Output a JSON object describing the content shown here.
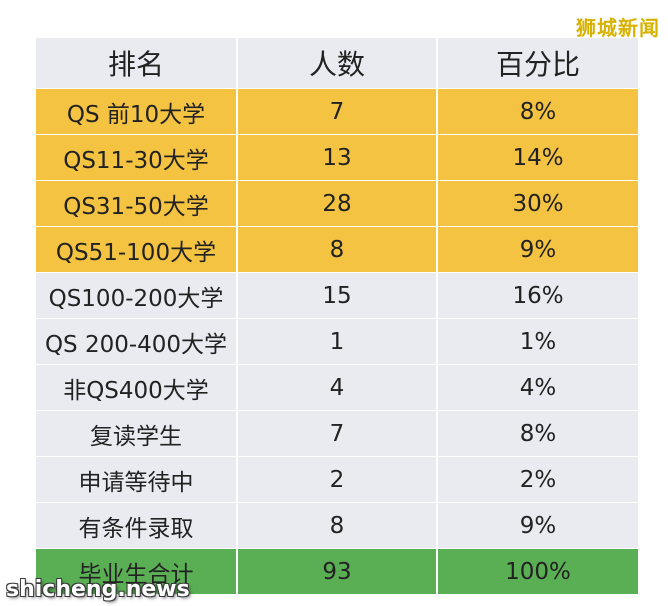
{
  "watermark_top": "狮城新闻",
  "watermark_bottom": "shicheng.news",
  "colors": {
    "gold": "#f4c342",
    "plain": "#eaebf1",
    "total": "#5aaf54"
  },
  "table": {
    "headers": [
      "排名",
      "人数",
      "百分比"
    ],
    "rows": [
      {
        "rank": "QS 前10大学",
        "count": "7",
        "percent": "8%",
        "style": "gold"
      },
      {
        "rank": "QS11-30大学",
        "count": "13",
        "percent": "14%",
        "style": "gold"
      },
      {
        "rank": "QS31-50大学",
        "count": "28",
        "percent": "30%",
        "style": "gold"
      },
      {
        "rank": "QS51-100大学",
        "count": "8",
        "percent": "9%",
        "style": "gold"
      },
      {
        "rank": "QS100-200大学",
        "count": "15",
        "percent": "16%",
        "style": "plain"
      },
      {
        "rank": "QS 200-400大学",
        "count": "1",
        "percent": "1%",
        "style": "plain"
      },
      {
        "rank": "非QS400大学",
        "count": "4",
        "percent": "4%",
        "style": "plain"
      },
      {
        "rank": "复读学生",
        "count": "7",
        "percent": "8%",
        "style": "plain"
      },
      {
        "rank": "申请等待中",
        "count": "2",
        "percent": "2%",
        "style": "plain"
      },
      {
        "rank": "有条件录取",
        "count": "8",
        "percent": "9%",
        "style": "plain"
      },
      {
        "rank": "毕业生合计",
        "count": "93",
        "percent": "100%",
        "style": "total"
      }
    ]
  }
}
